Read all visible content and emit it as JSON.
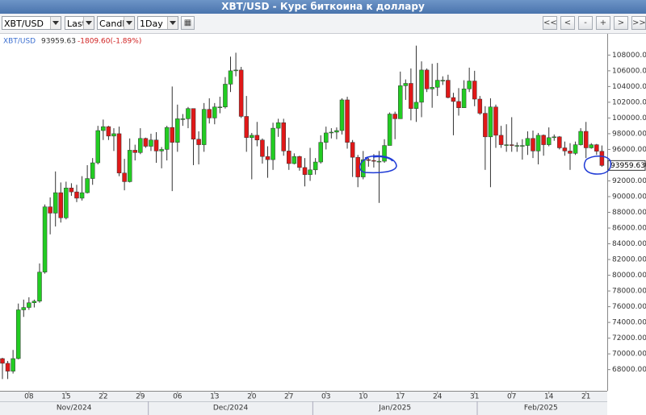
{
  "ui": {
    "title": "XBT/USD - Курс биткоина к доллару",
    "selects": [
      "XBT/USD",
      "Last",
      "Candle",
      "1Day"
    ],
    "buttons": [
      "<<",
      "<",
      "-",
      "+",
      ">",
      ">>"
    ]
  },
  "chart_data": {
    "type": "candlestick",
    "legend": {
      "last": 93959.63,
      "change": "-1809.60(-1.89%)"
    },
    "x": [
      "2024-11-03",
      "2024-11-04",
      "2024-11-05",
      "2024-11-06",
      "2024-11-07",
      "2024-11-08",
      "2024-11-09",
      "2024-11-10",
      "2024-11-11",
      "2024-11-12",
      "2024-11-13",
      "2024-11-14",
      "2024-11-15",
      "2024-11-16",
      "2024-11-17",
      "2024-11-18",
      "2024-11-19",
      "2024-11-20",
      "2024-11-21",
      "2024-11-22",
      "2024-11-23",
      "2024-11-24",
      "2024-11-25",
      "2024-11-26",
      "2024-11-27",
      "2024-11-28",
      "2024-11-29",
      "2024-11-30",
      "2024-12-01",
      "2024-12-02",
      "2024-12-03",
      "2024-12-04",
      "2024-12-05",
      "2024-12-06",
      "2024-12-07",
      "2024-12-08",
      "2024-12-09",
      "2024-12-10",
      "2024-12-11",
      "2024-12-12",
      "2024-12-13",
      "2024-12-14",
      "2024-12-15",
      "2024-12-16",
      "2024-12-17",
      "2024-12-18",
      "2024-12-19",
      "2024-12-20",
      "2024-12-21",
      "2024-12-22",
      "2024-12-23",
      "2024-12-24",
      "2024-12-25",
      "2024-12-26",
      "2024-12-27",
      "2024-12-28",
      "2024-12-29",
      "2024-12-30",
      "2024-12-31",
      "2025-01-01",
      "2025-01-02",
      "2025-01-03",
      "2025-01-04",
      "2025-01-05",
      "2025-01-06",
      "2025-01-07",
      "2025-01-08",
      "2025-01-09",
      "2025-01-10",
      "2025-01-11",
      "2025-01-12",
      "2025-01-13",
      "2025-01-14",
      "2025-01-15",
      "2025-01-16",
      "2025-01-17",
      "2025-01-18",
      "2025-01-19",
      "2025-01-20",
      "2025-01-21",
      "2025-01-22",
      "2025-01-23",
      "2025-01-24",
      "2025-01-25",
      "2025-01-26",
      "2025-01-27",
      "2025-01-28",
      "2025-01-29",
      "2025-01-30",
      "2025-01-31",
      "2025-02-01",
      "2025-02-02",
      "2025-02-03",
      "2025-02-04",
      "2025-02-05",
      "2025-02-06",
      "2025-02-07",
      "2025-02-08",
      "2025-02-09",
      "2025-02-10",
      "2025-02-11",
      "2025-02-12",
      "2025-02-13",
      "2025-02-14",
      "2025-02-15",
      "2025-02-16",
      "2025-02-17",
      "2025-02-18",
      "2025-02-19",
      "2025-02-20",
      "2025-02-21",
      "2025-02-22",
      "2025-02-23",
      "2025-02-24"
    ],
    "series": [
      {
        "name": "XBT/USD",
        "up_color": "#22cc22",
        "down_color": "#e01818",
        "open": [
          69400,
          68800,
          67800,
          69400,
          75600,
          75900,
          76500,
          76700,
          80400,
          88700,
          87900,
          90500,
          87300,
          91100,
          90600,
          89800,
          90500,
          92300,
          94300,
          98400,
          98900,
          97700,
          98000,
          93000,
          91900,
          95900,
          95600,
          97400,
          96400,
          97200,
          95800,
          96000,
          98800,
          96900,
          99900,
          99900,
          101200,
          97300,
          96600,
          101100,
          100000,
          101400,
          101400,
          104300,
          106000,
          106100,
          100200,
          97500,
          97800,
          97200,
          95100,
          94700,
          98700,
          99400,
          95800,
          94200,
          95100,
          93700,
          92800,
          93400,
          94400,
          96900,
          98100,
          98200,
          98400,
          102300,
          96900,
          95000,
          92500,
          94700,
          94600,
          94500,
          94500,
          96500,
          100500,
          99900,
          104100,
          104400,
          101200,
          102000,
          106100,
          103700,
          103900,
          104800,
          104800,
          102600,
          102100,
          101300,
          103700,
          104700,
          102400,
          100600,
          97600,
          101400,
          97800,
          96600,
          96600,
          96500,
          96500,
          96500,
          97400,
          95800,
          97800,
          96600,
          97500,
          97600,
          96200,
          95800,
          95500,
          96600,
          98300,
          96200,
          96600,
          95769.23
        ],
        "high": [
          69500,
          69100,
          70500,
          76400,
          76900,
          77200,
          76900,
          81500,
          89000,
          89900,
          93200,
          91800,
          91900,
          91700,
          91500,
          92600,
          94000,
          94900,
          99000,
          99800,
          99000,
          98700,
          98900,
          94800,
          97400,
          96600,
          98700,
          97500,
          98000,
          98200,
          96300,
          99000,
          104000,
          101700,
          100500,
          101400,
          101200,
          98300,
          101900,
          102500,
          101900,
          102700,
          105200,
          107800,
          108300,
          106500,
          102800,
          98100,
          99500,
          97400,
          96400,
          99400,
          99900,
          99900,
          97500,
          95500,
          95200,
          94900,
          96200,
          94900,
          97800,
          98900,
          98700,
          98800,
          102500,
          102700,
          97200,
          95300,
          95800,
          94900,
          95400,
          95800,
          97300,
          100700,
          100800,
          105900,
          104900,
          106300,
          109200,
          107200,
          106300,
          106900,
          107000,
          105300,
          105500,
          103200,
          103800,
          104800,
          106400,
          106000,
          102800,
          101500,
          102500,
          101700,
          99000,
          99200,
          100100,
          96900,
          97300,
          98300,
          98400,
          98100,
          97900,
          98800,
          97900,
          97700,
          97000,
          96800,
          97000,
          98700,
          99500,
          96800,
          96700,
          96500
        ],
        "low": [
          66800,
          66800,
          67500,
          69300,
          74700,
          75600,
          75900,
          76500,
          80200,
          85200,
          86200,
          86700,
          87100,
          90100,
          89300,
          89500,
          90400,
          91500,
          94100,
          97200,
          97200,
          95800,
          92600,
          90800,
          91800,
          94600,
          95400,
          96200,
          95800,
          94300,
          93600,
          94600,
          90700,
          95700,
          99000,
          98700,
          94000,
          94100,
          95700,
          99300,
          99200,
          100600,
          101200,
          103300,
          105300,
          100000,
          95700,
          92200,
          96400,
          94200,
          92400,
          93400,
          97600,
          95200,
          93400,
          94100,
          93300,
          91300,
          92000,
          92800,
          94200,
          96000,
          97400,
          97300,
          97900,
          96100,
          92500,
          91200,
          92200,
          93800,
          93700,
          89200,
          94300,
          96500,
          97300,
          99900,
          102300,
          99700,
          99500,
          100100,
          103300,
          101300,
          102800,
          104200,
          102500,
          97800,
          100300,
          101300,
          103300,
          101500,
          100400,
          93400,
          91200,
          96200,
          96200,
          95700,
          95700,
          95700,
          94700,
          95300,
          94900,
          94100,
          95200,
          96400,
          97100,
          96000,
          95200,
          93400,
          95300,
          96500,
          94900,
          96100,
          95300,
          93800
        ],
        "close": [
          68800,
          67800,
          69400,
          75600,
          75900,
          76500,
          76700,
          80400,
          88700,
          87900,
          90500,
          87300,
          91100,
          90600,
          89800,
          90500,
          92300,
          94300,
          98400,
          98900,
          97700,
          98000,
          93000,
          91900,
          95900,
          95600,
          97400,
          96400,
          97200,
          95800,
          96000,
          98800,
          96900,
          99900,
          99900,
          101200,
          97300,
          96600,
          101100,
          100000,
          101400,
          101400,
          104300,
          106000,
          106100,
          100200,
          97500,
          97800,
          97200,
          95100,
          94700,
          98700,
          99400,
          95800,
          94200,
          95100,
          93700,
          92800,
          93400,
          94400,
          96900,
          98100,
          98200,
          98400,
          102300,
          96900,
          95000,
          92500,
          94700,
          94600,
          94500,
          94500,
          96500,
          100500,
          99900,
          104100,
          104400,
          101200,
          102000,
          106100,
          103700,
          103900,
          104800,
          104800,
          102600,
          102100,
          101300,
          103700,
          104700,
          102400,
          100600,
          97600,
          101400,
          97800,
          96600,
          96600,
          96500,
          96500,
          96500,
          97400,
          95800,
          97800,
          96600,
          97500,
          97600,
          96200,
          95800,
          95500,
          96600,
          98300,
          96200,
          96600,
          95769.23,
          93959.63
        ]
      }
    ],
    "ylim": [
      65300,
      110700
    ],
    "yticks": [
      {
        "value": 68000,
        "label": "68000.00"
      },
      {
        "value": 70000,
        "label": "70000.00"
      },
      {
        "value": 72000,
        "label": "72000.00"
      },
      {
        "value": 74000,
        "label": "74000.00"
      },
      {
        "value": 76000,
        "label": "76000.00"
      },
      {
        "value": 78000,
        "label": "78000.00"
      },
      {
        "value": 80000,
        "label": "80000.00"
      },
      {
        "value": 82000,
        "label": "82000.00"
      },
      {
        "value": 84000,
        "label": "84000.00"
      },
      {
        "value": 86000,
        "label": "86000.00"
      },
      {
        "value": 88000,
        "label": "88000.00"
      },
      {
        "value": 90000,
        "label": "90000.00"
      },
      {
        "value": 92000,
        "label": "92000.00"
      },
      {
        "value": 94000,
        "label": "94000.00"
      },
      {
        "value": 96000,
        "label": "96000.00"
      },
      {
        "value": 98000,
        "label": "98000.00"
      },
      {
        "value": 100000,
        "label": "100000.00"
      },
      {
        "value": 102000,
        "label": "102000.00"
      },
      {
        "value": 104000,
        "label": "104000.00"
      },
      {
        "value": 106000,
        "label": "106000.00"
      },
      {
        "value": 108000,
        "label": "108000.00"
      }
    ],
    "xticks": [
      {
        "value": "2024-11-08",
        "label": "08"
      },
      {
        "value": "2024-11-15",
        "label": "15"
      },
      {
        "value": "2024-11-22",
        "label": "22"
      },
      {
        "value": "2024-11-29",
        "label": "29"
      },
      {
        "value": "2024-12-06",
        "label": "06"
      },
      {
        "value": "2024-12-13",
        "label": "13"
      },
      {
        "value": "2024-12-20",
        "label": "20"
      },
      {
        "value": "2024-12-27",
        "label": "27"
      },
      {
        "value": "2025-01-03",
        "label": "03"
      },
      {
        "value": "2025-01-10",
        "label": "10"
      },
      {
        "value": "2025-01-17",
        "label": "17"
      },
      {
        "value": "2025-01-24",
        "label": "24"
      },
      {
        "value": "2025-01-31",
        "label": "31"
      },
      {
        "value": "2025-02-07",
        "label": "07"
      },
      {
        "value": "2025-02-14",
        "label": "14"
      },
      {
        "value": "2025-02-21",
        "label": "21"
      }
    ],
    "months": [
      {
        "value": "2024-11",
        "label": "Nov/2024"
      },
      {
        "value": "2024-12",
        "label": "Dec/2024"
      },
      {
        "value": "2025-01",
        "label": "Jan/2025"
      },
      {
        "value": "2025-02",
        "label": "Feb/2025"
      }
    ]
  }
}
